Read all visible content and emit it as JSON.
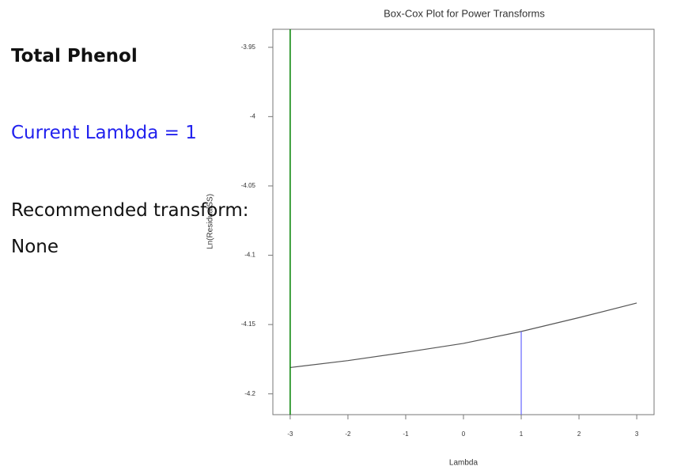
{
  "panel": {
    "response": "Total Phenol",
    "current": "Current Lambda = 1",
    "recommended_label": "Recommended transform:",
    "recommended": "None"
  },
  "chart_data": {
    "type": "line",
    "title": "Box-Cox Plot for Power Transforms",
    "xlabel": "Lambda",
    "ylabel": "Ln(ResidualSS)",
    "x": [
      -3,
      -2,
      -1,
      0,
      1,
      2,
      3
    ],
    "series": [
      {
        "name": "Ln(ResidualSS)",
        "color": "#555555",
        "values": [
          -4.181,
          -4.176,
          -4.17,
          -4.1636,
          -4.155,
          -4.145,
          -4.1345
        ]
      }
    ],
    "current_lambda": 1,
    "current_color": "#6666ff",
    "best_lambda": -3,
    "best_color": "#008000",
    "xlim": [
      -3.3,
      3.3
    ],
    "xticks": [
      -3,
      -2,
      -1,
      0,
      1,
      2,
      3
    ],
    "ylim": [
      -4.215,
      -3.937
    ],
    "yticks": [
      -3.95,
      -4,
      -4.05,
      -4.1,
      -4.15,
      -4.2
    ]
  }
}
